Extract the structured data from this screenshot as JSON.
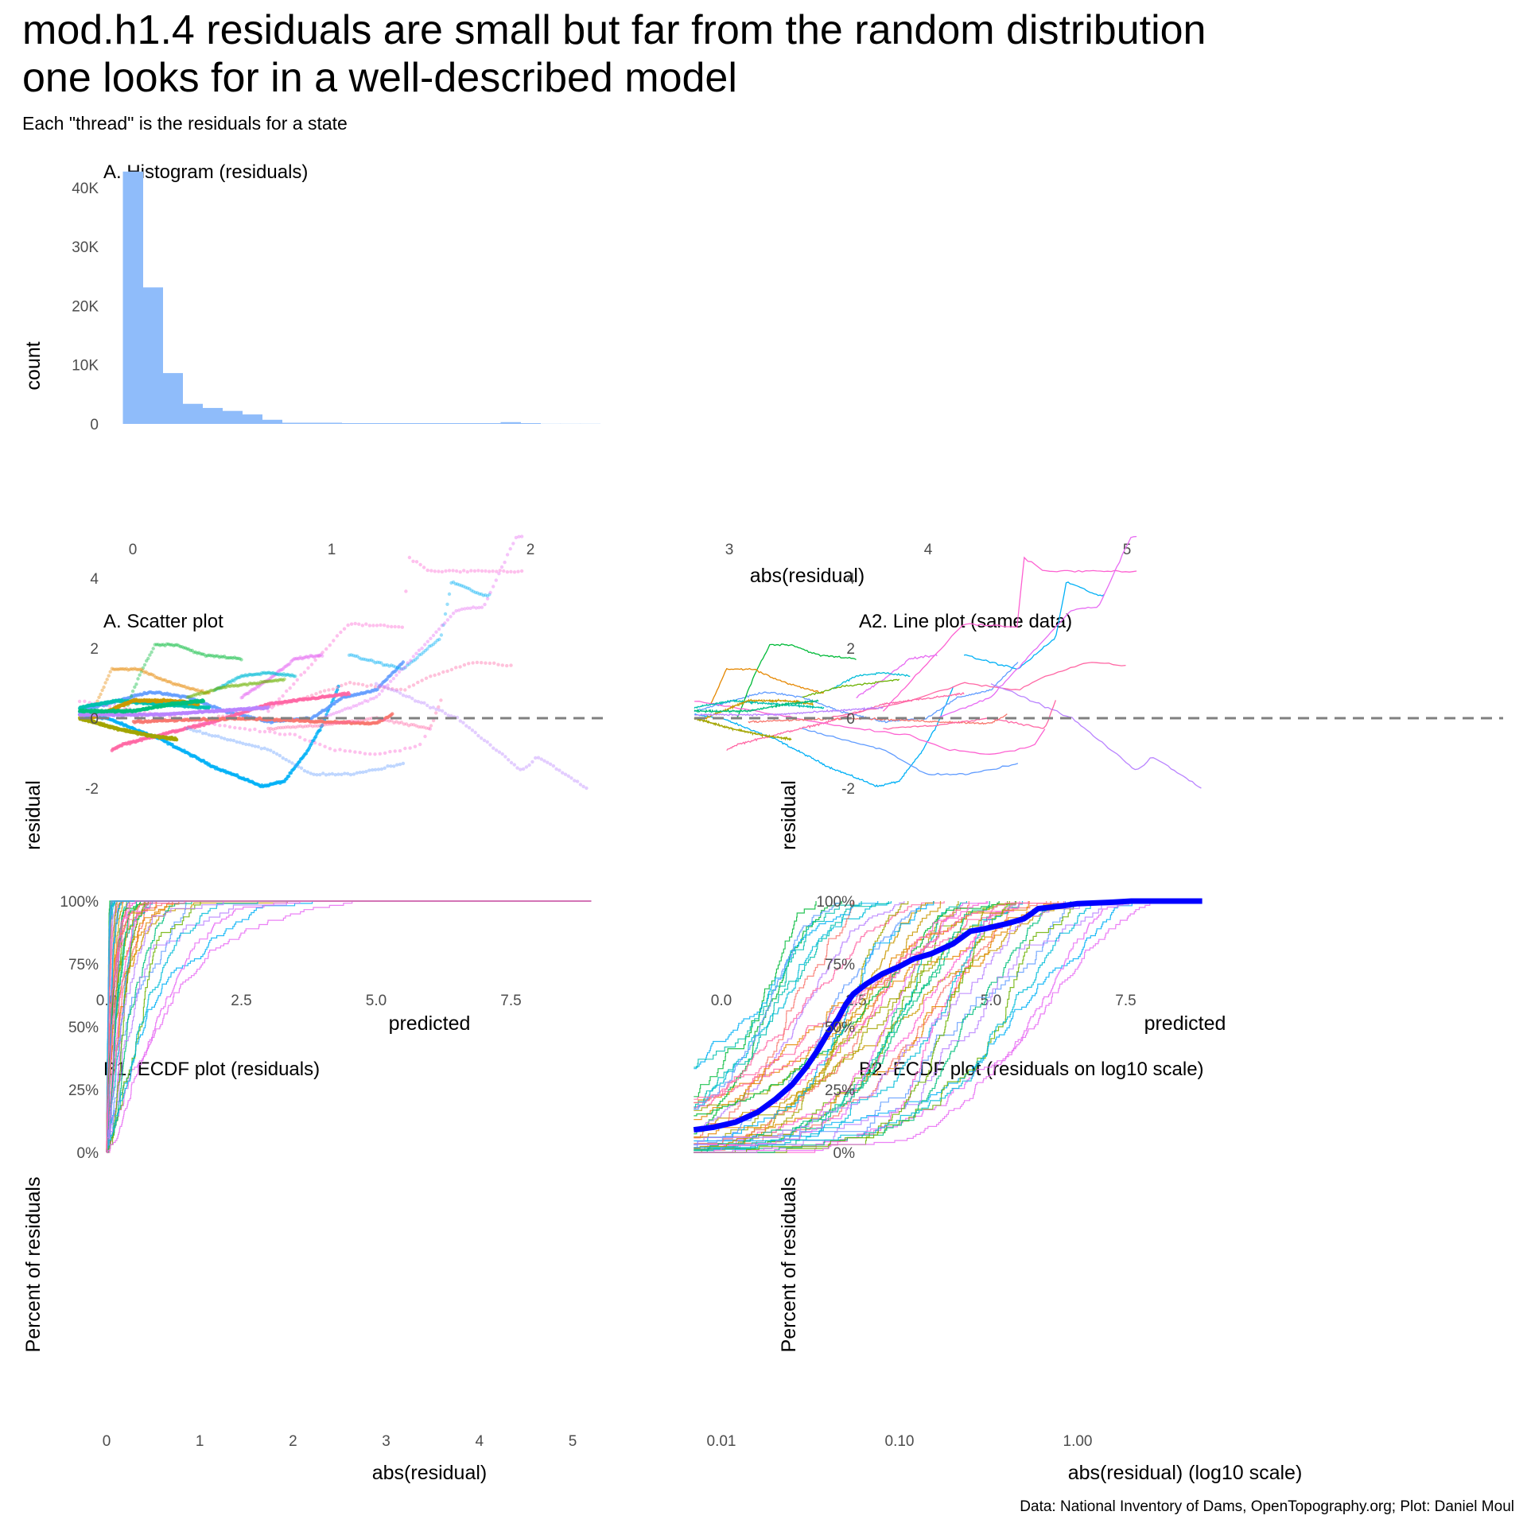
{
  "title_line1": "mod.h1.4 residuals are small but far from the random distribution",
  "title_line2": "one looks for in a well-described model",
  "subtitle": "Each \"thread\" is the residuals for a state",
  "caption": "Data: National Inventory of Dams, OpenTopography.org; Plot: Daniel Moul",
  "colors": {
    "histogram_fill": "#8fbcfa",
    "zero_line": "#808080",
    "overall_ecdf": "#0000ff",
    "state_palette": [
      "#f8766d",
      "#e58700",
      "#c99800",
      "#a3a500",
      "#6bb100",
      "#00ba38",
      "#00bf7d",
      "#00c0af",
      "#00bcd8",
      "#00b0f6",
      "#619cff",
      "#b983ff",
      "#e76bf3",
      "#fd61d1",
      "#ff67a4"
    ]
  },
  "chart_data": [
    {
      "id": "histogram",
      "type": "bar",
      "title": "A. Histogram (residuals)",
      "xlabel": "abs(residual)",
      "ylabel": "count",
      "xlim": [
        -0.1,
        5.3
      ],
      "ylim": [
        0,
        43000
      ],
      "xticks": [
        0,
        1,
        2,
        3,
        4,
        5
      ],
      "xtick_labels": [
        "0",
        "1",
        "2",
        "3",
        "4",
        "5"
      ],
      "yticks": [
        0,
        10000,
        20000,
        30000,
        40000
      ],
      "ytick_labels": [
        "0",
        "10K",
        "20K",
        "30K",
        "40K"
      ],
      "bin_width": 0.1,
      "bin_centers": [
        0.0,
        0.1,
        0.2,
        0.3,
        0.4,
        0.5,
        0.6,
        0.7,
        0.8,
        0.9,
        1.0,
        1.1,
        1.2,
        1.3,
        1.4,
        1.5,
        1.6,
        1.7,
        1.8,
        1.9,
        2.0,
        2.1,
        2.2,
        2.3
      ],
      "values": [
        42700,
        23100,
        8600,
        3400,
        2700,
        2200,
        1600,
        700,
        200,
        200,
        200,
        100,
        100,
        100,
        100,
        100,
        100,
        100,
        100,
        300,
        100,
        20,
        20,
        20
      ],
      "grid": false
    },
    {
      "id": "scatter",
      "type": "scatter",
      "title": "A. Scatter plot",
      "xlabel": "predicted",
      "ylabel": "residual",
      "xlim": [
        -0.5,
        9.3
      ],
      "ylim": [
        -2.2,
        5.4
      ],
      "xticks": [
        0,
        2.5,
        5,
        7.5
      ],
      "xtick_labels": [
        "0.0",
        "2.5",
        "5.0",
        "7.5"
      ],
      "yticks": [
        -2,
        0,
        2,
        4
      ],
      "ytick_labels": [
        "-2",
        "0",
        "2",
        "4"
      ],
      "reference_line": 0,
      "series_note": "one colored thread per state"
    },
    {
      "id": "lineplot",
      "type": "line",
      "title": "A2. Line plot (same data)",
      "xlabel": "predicted",
      "ylabel": "residual",
      "xlim": [
        -0.5,
        9.3
      ],
      "ylim": [
        -2.2,
        5.4
      ],
      "xticks": [
        0,
        2.5,
        5,
        7.5
      ],
      "xtick_labels": [
        "0.0",
        "2.5",
        "5.0",
        "7.5"
      ],
      "yticks": [
        -2,
        0,
        2,
        4
      ],
      "ytick_labels": [
        "-2",
        "0",
        "2",
        "4"
      ],
      "reference_line": 0
    },
    {
      "id": "ecdf",
      "type": "line",
      "title": "B1. ECDF plot (residuals)",
      "xlabel": "abs(residual)",
      "ylabel": "Percent of residuals",
      "xlim": [
        -0.05,
        5.3
      ],
      "ylim": [
        0,
        1
      ],
      "xticks": [
        0,
        1,
        2,
        3,
        4,
        5
      ],
      "xtick_labels": [
        "0",
        "1",
        "2",
        "3",
        "4",
        "5"
      ],
      "yticks": [
        0,
        0.25,
        0.5,
        0.75,
        1
      ],
      "ytick_labels": [
        "0%",
        "25%",
        "50%",
        "75%",
        "100%"
      ]
    },
    {
      "id": "ecdf_log",
      "type": "line",
      "title": "B2. ECDF plot (residuals on log10 scale)",
      "xlabel": "abs(residual) (log10 scale)",
      "ylabel": "Percent of residuals",
      "xscale": "log10",
      "xlim": [
        0.007,
        5.2
      ],
      "ylim": [
        0,
        1
      ],
      "xticks": [
        0.01,
        0.1,
        1
      ],
      "xtick_labels": [
        "0.01",
        "0.10",
        "1.00"
      ],
      "yticks": [
        0,
        0.25,
        0.5,
        0.75,
        1
      ],
      "ytick_labels": [
        "0%",
        "25%",
        "50%",
        "75%",
        "100%"
      ],
      "overall_ecdf": {
        "x": [
          0.007,
          0.009,
          0.012,
          0.016,
          0.02,
          0.025,
          0.03,
          0.035,
          0.04,
          0.045,
          0.05,
          0.055,
          0.065,
          0.08,
          0.1,
          0.12,
          0.15,
          0.2,
          0.25,
          0.3,
          0.4,
          0.5,
          0.55,
          0.6,
          0.8,
          1.0,
          1.5,
          2.0,
          5.0
        ],
        "y": [
          0.09,
          0.1,
          0.12,
          0.16,
          0.21,
          0.27,
          0.34,
          0.41,
          0.48,
          0.53,
          0.59,
          0.63,
          0.67,
          0.71,
          0.74,
          0.77,
          0.79,
          0.83,
          0.88,
          0.89,
          0.91,
          0.93,
          0.95,
          0.97,
          0.98,
          0.99,
          0.995,
          1.0,
          1.0
        ]
      }
    }
  ]
}
